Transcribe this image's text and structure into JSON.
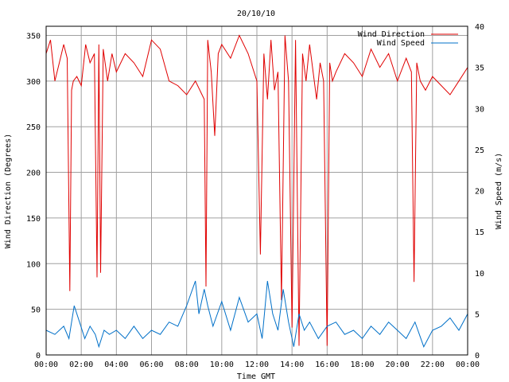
{
  "chart_data": {
    "type": "line",
    "title": "20/10/10",
    "xlabel": "Time GMT",
    "ylabel": "Wind Direction (Degrees)",
    "y2label": "Wind Speed (m/s)",
    "ylim": [
      0,
      360
    ],
    "y2lim": [
      0,
      40
    ],
    "yticks": [
      0,
      50,
      100,
      150,
      200,
      250,
      300,
      350
    ],
    "y2ticks": [
      0,
      5,
      10,
      15,
      20,
      25,
      30,
      35,
      40
    ],
    "xlim_hours": [
      0,
      24
    ],
    "xticks": [
      "00:00",
      "02:00",
      "04:00",
      "06:00",
      "08:00",
      "10:00",
      "12:00",
      "14:00",
      "16:00",
      "18:00",
      "20:00",
      "22:00",
      "00:00"
    ],
    "grid": true,
    "legend_position": "top-right",
    "series": [
      {
        "name": "Wind Direction",
        "axis": "left",
        "color": "#e00000",
        "x": [
          0,
          0.25,
          0.5,
          0.75,
          1.0,
          1.2,
          1.35,
          1.45,
          1.55,
          1.75,
          2.0,
          2.25,
          2.5,
          2.75,
          2.9,
          3.0,
          3.1,
          3.25,
          3.5,
          3.75,
          4.0,
          4.5,
          5.0,
          5.5,
          6.0,
          6.5,
          7.0,
          7.5,
          8.0,
          8.5,
          9.0,
          9.1,
          9.2,
          9.4,
          9.6,
          9.8,
          10.0,
          10.5,
          11.0,
          11.5,
          12.0,
          12.2,
          12.4,
          12.6,
          12.8,
          13.0,
          13.2,
          13.4,
          13.6,
          13.8,
          14.0,
          14.2,
          14.4,
          14.6,
          14.8,
          15.0,
          15.2,
          15.4,
          15.6,
          15.8,
          16.0,
          16.15,
          16.3,
          16.5,
          17.0,
          17.5,
          18.0,
          18.5,
          19.0,
          19.5,
          20.0,
          20.5,
          20.8,
          20.95,
          21.1,
          21.3,
          21.6,
          22.0,
          22.5,
          23.0,
          23.5,
          24.0
        ],
        "values": [
          330,
          345,
          300,
          320,
          340,
          325,
          70,
          290,
          300,
          305,
          295,
          340,
          320,
          330,
          85,
          340,
          90,
          335,
          300,
          330,
          310,
          330,
          320,
          305,
          345,
          335,
          300,
          295,
          285,
          300,
          280,
          75,
          345,
          310,
          240,
          330,
          340,
          325,
          350,
          330,
          300,
          110,
          330,
          280,
          345,
          290,
          310,
          60,
          350,
          300,
          30,
          345,
          10,
          330,
          300,
          340,
          310,
          280,
          320,
          300,
          10,
          320,
          300,
          310,
          330,
          320,
          305,
          335,
          315,
          330,
          300,
          325,
          310,
          80,
          320,
          300,
          290,
          305,
          295,
          285,
          300,
          315
        ]
      },
      {
        "name": "Wind Speed",
        "axis": "right",
        "color": "#0070c8",
        "x": [
          0,
          0.5,
          1.0,
          1.3,
          1.6,
          1.9,
          2.2,
          2.5,
          2.8,
          3.0,
          3.3,
          3.6,
          4.0,
          4.5,
          5.0,
          5.5,
          6.0,
          6.5,
          7.0,
          7.5,
          8.0,
          8.5,
          8.7,
          9.0,
          9.2,
          9.5,
          10.0,
          10.5,
          11.0,
          11.5,
          12.0,
          12.3,
          12.6,
          12.9,
          13.2,
          13.5,
          13.8,
          14.1,
          14.4,
          14.7,
          15.0,
          15.5,
          16.0,
          16.5,
          17.0,
          17.5,
          18.0,
          18.5,
          19.0,
          19.5,
          20.0,
          20.5,
          21.0,
          21.5,
          22.0,
          22.5,
          23.0,
          23.5,
          24.0
        ],
        "values": [
          3,
          2.5,
          3.5,
          2,
          6,
          4,
          2,
          3.5,
          2.5,
          1,
          3,
          2.5,
          3,
          2,
          3.5,
          2,
          3,
          2.5,
          4,
          3.5,
          6,
          9,
          5,
          8,
          6,
          3.5,
          6.5,
          3,
          7,
          4,
          5,
          2,
          9,
          5,
          3,
          8,
          4,
          1,
          5,
          3,
          4,
          2,
          3.5,
          4,
          2.5,
          3,
          2,
          3.5,
          2.5,
          4,
          3,
          2,
          4,
          1,
          3,
          3.5,
          4.5,
          3,
          5
        ]
      }
    ]
  }
}
